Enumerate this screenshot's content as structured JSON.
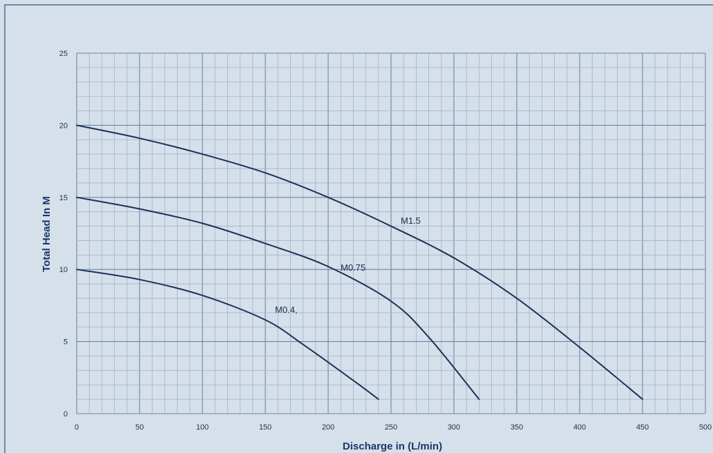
{
  "chart_data": {
    "type": "line",
    "title": "",
    "xlabel": "Discharge in (L/min)",
    "ylabel": "Total Head In M",
    "xlim": [
      0,
      500
    ],
    "ylim": [
      0,
      25
    ],
    "xticks": [
      0,
      50,
      100,
      150,
      200,
      250,
      300,
      350,
      400,
      450,
      500
    ],
    "yticks": [
      0,
      5,
      10,
      15,
      20,
      25
    ],
    "grid": true,
    "legend": "none",
    "colors": {
      "background": "#d6e0ea",
      "grid_major": "#6b85a8",
      "grid_minor": "#9fb2c9",
      "line": "#1c2f57",
      "axis_title": "#1b3768"
    },
    "series": [
      {
        "name": "M1.5",
        "x": [
          0,
          50,
          100,
          150,
          200,
          250,
          300,
          350,
          400,
          450
        ],
        "y": [
          20,
          19.1,
          18,
          16.7,
          15,
          13,
          10.8,
          8,
          4.6,
          1
        ]
      },
      {
        "name": "M0.75",
        "x": [
          0,
          50,
          100,
          150,
          200,
          250,
          280,
          320
        ],
        "y": [
          15,
          14.2,
          13.2,
          11.8,
          10.2,
          7.8,
          5.3,
          1
        ]
      },
      {
        "name": "M0.4,",
        "x": [
          0,
          50,
          100,
          150,
          180,
          220,
          240
        ],
        "y": [
          10,
          9.3,
          8.2,
          6.5,
          4.8,
          2.3,
          1
        ]
      }
    ]
  }
}
